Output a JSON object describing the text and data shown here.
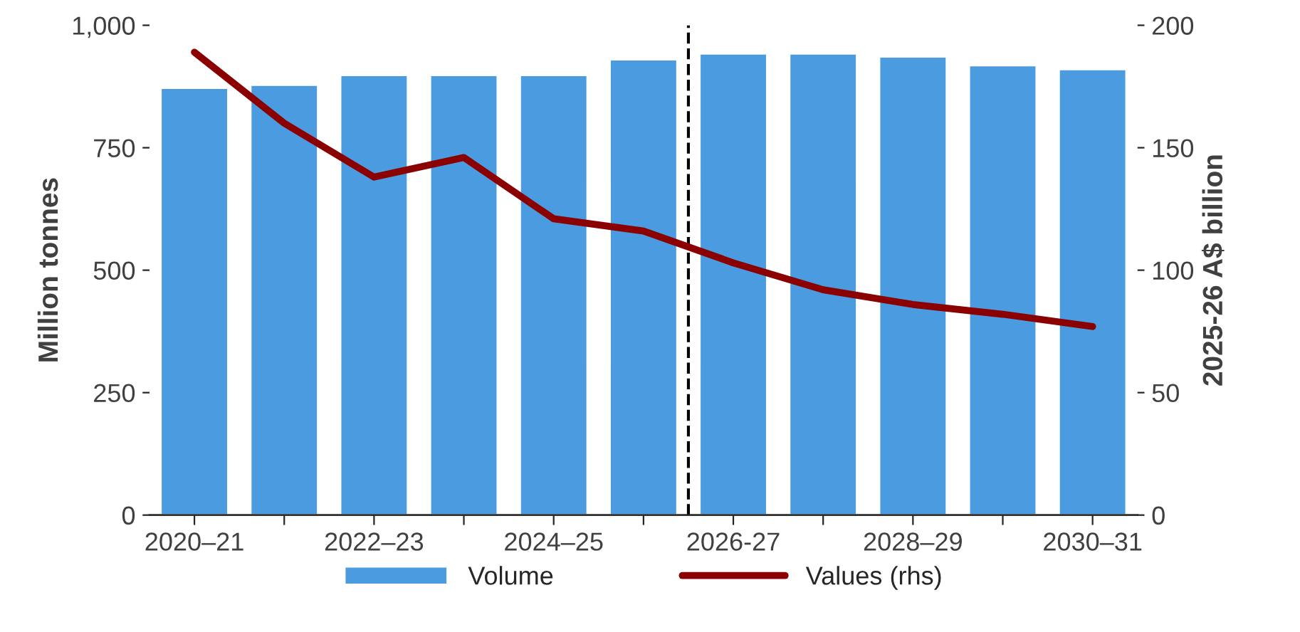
{
  "chart_data": {
    "type": "bar",
    "categories": [
      "2020–21",
      null,
      "2022–23",
      null,
      "2024–25",
      null,
      "2026-27",
      null,
      "2028–29",
      null,
      "2030–31"
    ],
    "ylabel": "Million tonnes",
    "y2label": "2025-26 A$ billion",
    "series": [
      {
        "name": "Volume",
        "color": "#4a9be0",
        "values": [
          872,
          878,
          898,
          898,
          898,
          930,
          942,
          942,
          936,
          918,
          910
        ]
      },
      {
        "name": "Values (rhs)",
        "type": "line",
        "axis": "y2",
        "color": "#8b0000",
        "values": [
          189,
          160,
          138,
          146,
          121,
          116,
          103,
          92,
          86,
          82,
          77
        ]
      }
    ],
    "ylim": [
      0,
      1000
    ],
    "yticks": [
      0,
      250,
      500,
      750,
      {
        "value": 1000,
        "label": "1,000"
      }
    ],
    "y2lim": [
      0,
      200
    ],
    "y2ticks": [
      0,
      50,
      100,
      150,
      200
    ],
    "legend": "bottom",
    "grid": false
  }
}
